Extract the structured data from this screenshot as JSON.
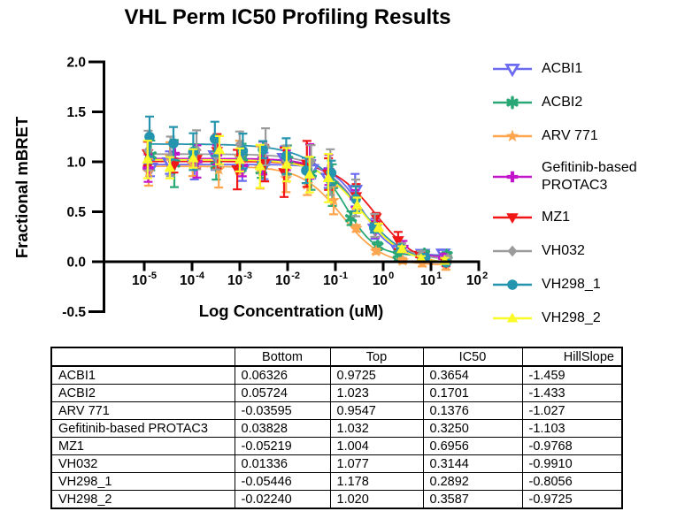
{
  "chart_data": {
    "type": "scatter",
    "title": "VHL Perm IC50 Profiling Results",
    "xlabel": "Log Concentration (uM)",
    "ylabel": "Fractional mBRET",
    "x_scale": "log10",
    "x_tick_exponents": [
      -5,
      -4,
      -3,
      -2,
      -1,
      0,
      1,
      2
    ],
    "y_ticks": [
      "2.0",
      "1.5",
      "1.0",
      "0.5",
      "0.0",
      "-0.5"
    ],
    "ylim": [
      -0.5,
      2.0
    ],
    "grid": false,
    "legend_position": "right",
    "fit_model": "Y = Bottom + (Top - Bottom) / (1 + 10^((log10(IC50) - log10(X)) * HillSlope))",
    "concentrations_log10": [
      -4.9,
      -4.43,
      -3.95,
      -3.47,
      -3.0,
      -2.52,
      -2.04,
      -1.56,
      -1.09,
      -0.61,
      -0.13,
      0.35,
      0.82,
      1.3
    ],
    "series": [
      {
        "name": "ACBI1",
        "color": "#6B6BF2",
        "marker": "triangle-down-open",
        "bottom": 0.06326,
        "top": 0.9725,
        "ic50": 0.3654,
        "hillslope": -1.459
      },
      {
        "name": "ACBI2",
        "color": "#29A876",
        "marker": "asterisk",
        "bottom": 0.05724,
        "top": 1.023,
        "ic50": 0.1701,
        "hillslope": -1.433
      },
      {
        "name": "ARV 771",
        "color": "#FFA54E",
        "marker": "star",
        "bottom": -0.03595,
        "top": 0.9547,
        "ic50": 0.1376,
        "hillslope": -1.027
      },
      {
        "name": "Gefitinib-based PROTAC3",
        "color": "#C315C9",
        "marker": "plus",
        "bottom": 0.03828,
        "top": 1.032,
        "ic50": 0.325,
        "hillslope": -1.103
      },
      {
        "name": "MZ1",
        "color": "#F21717",
        "marker": "triangle-down",
        "bottom": -0.05219,
        "top": 1.004,
        "ic50": 0.6956,
        "hillslope": -0.9768
      },
      {
        "name": "VH032",
        "color": "#9B9B9B",
        "marker": "diamond",
        "bottom": 0.01336,
        "top": 1.077,
        "ic50": 0.3144,
        "hillslope": -0.991
      },
      {
        "name": "VH298_1",
        "color": "#2594AE",
        "marker": "circle",
        "bottom": -0.05446,
        "top": 1.178,
        "ic50": 0.2892,
        "hillslope": -0.8056
      },
      {
        "name": "VH298_2",
        "color": "#FAFA28",
        "marker": "triangle-up",
        "bottom": -0.0224,
        "top": 1.02,
        "ic50": 0.3587,
        "hillslope": -0.9725
      }
    ]
  },
  "table": {
    "headers": [
      "",
      "Bottom",
      "Top",
      "IC50",
      "HillSlope"
    ],
    "rows": [
      [
        "ACBI1",
        "0.06326",
        "0.9725",
        "0.3654",
        "-1.459"
      ],
      [
        "ACBI2",
        "0.05724",
        "1.023",
        "0.1701",
        "-1.433"
      ],
      [
        "ARV 771",
        "-0.03595",
        "0.9547",
        "0.1376",
        "-1.027"
      ],
      [
        "Gefitinib-based PROTAC3",
        "0.03828",
        "1.032",
        "0.3250",
        "-1.103"
      ],
      [
        "MZ1",
        "-0.05219",
        "1.004",
        "0.6956",
        "-0.9768"
      ],
      [
        "VH032",
        "0.01336",
        "1.077",
        "0.3144",
        "-0.9910"
      ],
      [
        "VH298_1",
        "-0.05446",
        "1.178",
        "0.2892",
        "-0.8056"
      ],
      [
        "VH298_2",
        "-0.02240",
        "1.020",
        "0.3587",
        "-0.9725"
      ]
    ]
  }
}
